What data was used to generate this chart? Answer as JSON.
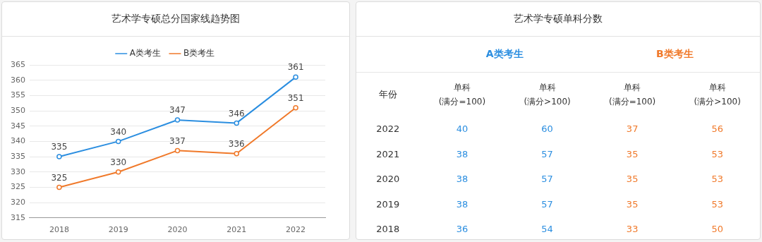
{
  "chart_data": [
    {
      "type": "line",
      "title": "艺术学专硕总分国家线趋势图",
      "categories": [
        "2018",
        "2019",
        "2020",
        "2021",
        "2022"
      ],
      "series": [
        {
          "name": "A类考生",
          "color": "#2b8ee0",
          "values": [
            335,
            340,
            347,
            346,
            361
          ]
        },
        {
          "name": "B类考生",
          "color": "#f0792a",
          "values": [
            325,
            330,
            337,
            336,
            351
          ]
        }
      ],
      "ylim": [
        315,
        365
      ],
      "yticks": [
        315,
        320,
        325,
        330,
        335,
        340,
        345,
        350,
        355,
        360,
        365
      ],
      "grid": "y",
      "legend": "top",
      "marker": "circle",
      "line_style": "solid",
      "data_labels": true
    },
    {
      "type": "heatmap",
      "title": "艺术学专硕单科分数",
      "xlabel": "年份",
      "annotations": [
        "A类考生",
        "B类考生"
      ],
      "colors": [
        "#2b8ee0",
        "#2b8ee0",
        "#f0792a",
        "#f0792a"
      ],
      "categories": [
        "单科\n(满分=100)",
        "单科\n(满分>100)",
        "单科\n(满分=100)",
        "单科\n(满分>100)"
      ],
      "y_categories": [
        "2022",
        "2021",
        "2020",
        "2019",
        "2018"
      ],
      "cells": [
        [
          40,
          60,
          37,
          56
        ],
        [
          38,
          57,
          35,
          53
        ],
        [
          38,
          57,
          35,
          53
        ],
        [
          38,
          57,
          35,
          53
        ],
        [
          36,
          54,
          33,
          50
        ]
      ],
      "data_labels": true
    }
  ]
}
